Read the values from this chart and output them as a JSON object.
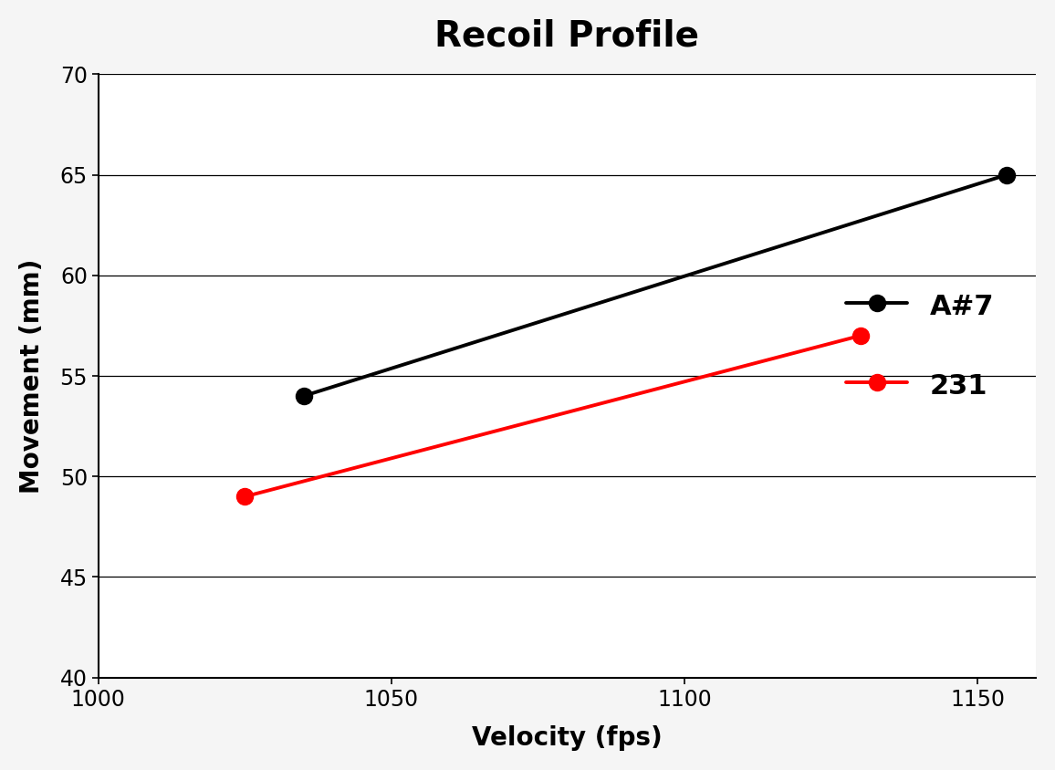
{
  "title": "Recoil Profile",
  "xlabel": "Velocity (fps)",
  "ylabel": "Movement (mm)",
  "series": [
    {
      "label": "A#7",
      "color": "#000000",
      "x": [
        1035,
        1155
      ],
      "y": [
        54,
        65
      ]
    },
    {
      "label": "231",
      "color": "#ff0000",
      "x": [
        1025,
        1130
      ],
      "y": [
        49,
        57
      ]
    }
  ],
  "xlim": [
    1000,
    1160
  ],
  "ylim": [
    40,
    70
  ],
  "xticks": [
    1000,
    1050,
    1100,
    1150
  ],
  "yticks": [
    40,
    45,
    50,
    55,
    60,
    65,
    70
  ],
  "background_color": "#f5f5f5",
  "plot_bg_color": "#ffffff",
  "title_fontsize": 28,
  "axis_label_fontsize": 20,
  "tick_fontsize": 17,
  "legend_fontsize": 22,
  "marker_size": 13,
  "line_width": 2.8
}
